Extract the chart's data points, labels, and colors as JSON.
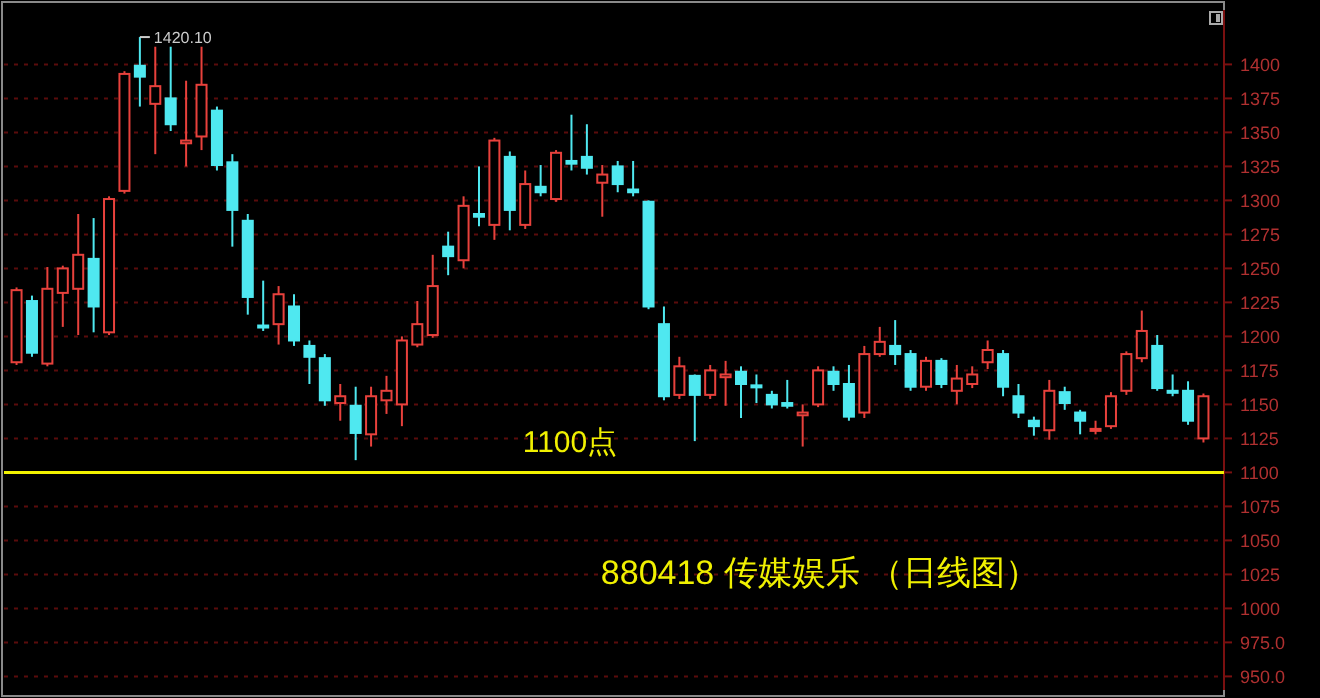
{
  "chart_data": {
    "type": "candlestick",
    "title": "880418 传媒娱乐 （日线图）",
    "categories": [
      null,
      null,
      null,
      null,
      null,
      null,
      null,
      null,
      null,
      null,
      null,
      null,
      null,
      null,
      null,
      null,
      null,
      null,
      null,
      null,
      null,
      null,
      null,
      null,
      null,
      null,
      null,
      null,
      null,
      null,
      null,
      null,
      null,
      null,
      null,
      null,
      null,
      null,
      null,
      null,
      null,
      null,
      null,
      null,
      null,
      null,
      null,
      null,
      null,
      null,
      null,
      null,
      null,
      null,
      null,
      null,
      null,
      null,
      null,
      null,
      null,
      null,
      null,
      null,
      null,
      null,
      null,
      null,
      null,
      null,
      null,
      null,
      null,
      null,
      null,
      null,
      null,
      null
    ],
    "ohlc": [
      [
        1181,
        1236,
        1179,
        1234
      ],
      [
        1226,
        1230,
        1185,
        1188
      ],
      [
        1180,
        1251,
        1178,
        1235
      ],
      [
        1232,
        1252,
        1207,
        1250
      ],
      [
        1235,
        1290,
        1201,
        1260
      ],
      [
        1257,
        1287,
        1203,
        1222
      ],
      [
        1203,
        1303,
        1201,
        1301
      ],
      [
        1307,
        1395,
        1305,
        1393
      ],
      [
        1399,
        1420.1,
        1369,
        1391
      ],
      [
        1371,
        1413,
        1334,
        1384
      ],
      [
        1375,
        1413,
        1351,
        1356
      ],
      [
        1342,
        1388,
        1325,
        1344
      ],
      [
        1347,
        1413,
        1337,
        1385
      ],
      [
        1366,
        1369,
        1322,
        1326
      ],
      [
        1328,
        1334,
        1266,
        1293
      ],
      [
        1285,
        1290,
        1216,
        1229
      ],
      [
        1208,
        1241,
        1204,
        1207
      ],
      [
        1209,
        1237,
        1194,
        1231
      ],
      [
        1222,
        1231,
        1193,
        1197
      ],
      [
        1193,
        1197,
        1165,
        1185
      ],
      [
        1184,
        1187,
        1149,
        1153
      ],
      [
        1151,
        1165,
        1138,
        1156
      ],
      [
        1149,
        1163,
        1109,
        1129
      ],
      [
        1128,
        1163,
        1119,
        1156
      ],
      [
        1153,
        1171,
        1143,
        1160
      ],
      [
        1150,
        1200,
        1134,
        1197
      ],
      [
        1194,
        1226,
        1192,
        1209
      ],
      [
        1201,
        1260,
        1199,
        1237
      ],
      [
        1266,
        1277,
        1245,
        1259
      ],
      [
        1256,
        1303,
        1250,
        1296
      ],
      [
        1290,
        1325,
        1281,
        1288
      ],
      [
        1282,
        1346,
        1271,
        1344
      ],
      [
        1332,
        1336,
        1278,
        1293
      ],
      [
        1282,
        1322,
        1279,
        1312
      ],
      [
        1310,
        1326,
        1303,
        1306
      ],
      [
        1301,
        1337,
        1299,
        1335
      ],
      [
        1329,
        1363,
        1322,
        1327
      ],
      [
        1332,
        1356,
        1319,
        1324
      ],
      [
        1313,
        1326,
        1288,
        1319
      ],
      [
        1325,
        1329,
        1306,
        1312
      ],
      [
        1308,
        1329,
        1303,
        1306
      ],
      [
        1299,
        1300,
        1220,
        1222
      ],
      [
        1209,
        1222,
        1153,
        1156
      ],
      [
        1157,
        1185,
        1154,
        1178
      ],
      [
        1171,
        1172,
        1123,
        1157
      ],
      [
        1157,
        1179,
        1154,
        1175
      ],
      [
        1170,
        1182,
        1149,
        1172
      ],
      [
        1174,
        1178,
        1140,
        1165
      ],
      [
        1164,
        1172,
        1151,
        1163
      ],
      [
        1157,
        1160,
        1147,
        1150
      ],
      [
        1151,
        1168,
        1147,
        1149
      ],
      [
        1142,
        1150,
        1119,
        1144
      ],
      [
        1150,
        1178,
        1148,
        1175
      ],
      [
        1174,
        1178,
        1160,
        1165
      ],
      [
        1165,
        1179,
        1138,
        1141
      ],
      [
        1144,
        1193,
        1140,
        1187
      ],
      [
        1187,
        1207,
        1185,
        1196
      ],
      [
        1193,
        1212,
        1179,
        1187
      ],
      [
        1187,
        1190,
        1160,
        1163
      ],
      [
        1163,
        1185,
        1160,
        1182
      ],
      [
        1182,
        1184,
        1162,
        1165
      ],
      [
        1160,
        1179,
        1150,
        1169
      ],
      [
        1165,
        1178,
        1162,
        1172
      ],
      [
        1181,
        1197,
        1176,
        1190
      ],
      [
        1187,
        1190,
        1156,
        1163
      ],
      [
        1156,
        1165,
        1140,
        1144
      ],
      [
        1138,
        1141,
        1127,
        1134
      ],
      [
        1131,
        1168,
        1124,
        1160
      ],
      [
        1159,
        1163,
        1146,
        1151
      ],
      [
        1144,
        1146,
        1128,
        1138
      ],
      [
        1131,
        1138,
        1128,
        1132
      ],
      [
        1134,
        1159,
        1132,
        1156
      ],
      [
        1160,
        1189,
        1157,
        1187
      ],
      [
        1184,
        1219,
        1181,
        1204
      ],
      [
        1193,
        1201,
        1160,
        1162
      ],
      [
        1160,
        1172,
        1156,
        1159
      ],
      [
        1160,
        1167,
        1135,
        1138
      ],
      [
        1125,
        1158,
        1122,
        1156
      ]
    ],
    "colors": [
      "#e8413c",
      "#4fe8f0",
      "#e8413c",
      "#e8413c",
      "#e8413c",
      "#4fe8f0",
      "#e8413c",
      "#e8413c",
      "#4fe8f0",
      "#e8413c",
      "#4fe8f0",
      "#e8413c",
      "#e8413c",
      "#4fe8f0",
      "#4fe8f0",
      "#4fe8f0",
      "#4fe8f0",
      "#e8413c",
      "#4fe8f0",
      "#4fe8f0",
      "#4fe8f0",
      "#e8413c",
      "#4fe8f0",
      "#e8413c",
      "#e8413c",
      "#e8413c",
      "#e8413c",
      "#e8413c",
      "#4fe8f0",
      "#e8413c",
      "#4fe8f0",
      "#e8413c",
      "#4fe8f0",
      "#e8413c",
      "#4fe8f0",
      "#e8413c",
      "#4fe8f0",
      "#4fe8f0",
      "#e8413c",
      "#4fe8f0",
      "#4fe8f0",
      "#4fe8f0",
      "#4fe8f0",
      "#e8413c",
      "#4fe8f0",
      "#e8413c",
      "#e8413c",
      "#4fe8f0",
      "#4fe8f0",
      "#4fe8f0",
      "#4fe8f0",
      "#e8413c",
      "#e8413c",
      "#4fe8f0",
      "#4fe8f0",
      "#e8413c",
      "#e8413c",
      "#4fe8f0",
      "#4fe8f0",
      "#e8413c",
      "#4fe8f0",
      "#e8413c",
      "#e8413c",
      "#e8413c",
      "#4fe8f0",
      "#4fe8f0",
      "#4fe8f0",
      "#e8413c",
      "#4fe8f0",
      "#4fe8f0",
      "#e8413c",
      "#e8413c",
      "#e8413c",
      "#e8413c",
      "#4fe8f0",
      "#4fe8f0",
      "#4fe8f0",
      "#e8413c"
    ],
    "ylim": [
      940,
      1440
    ],
    "yticks": [
      1400,
      1375,
      1350,
      1325,
      1300,
      1275,
      1250,
      1225,
      1200,
      1175,
      1150,
      1125,
      1100,
      1075,
      1050,
      1025,
      1000,
      {
        "value": 975,
        "label": "975.0"
      },
      {
        "value": 950,
        "label": "950.0"
      }
    ],
    "grid": "y",
    "ref_lines": [
      {
        "axis": "y",
        "value": 1100,
        "label": "1100点",
        "color": "#f0f000"
      }
    ],
    "annotations": [
      "1420.10"
    ]
  }
}
